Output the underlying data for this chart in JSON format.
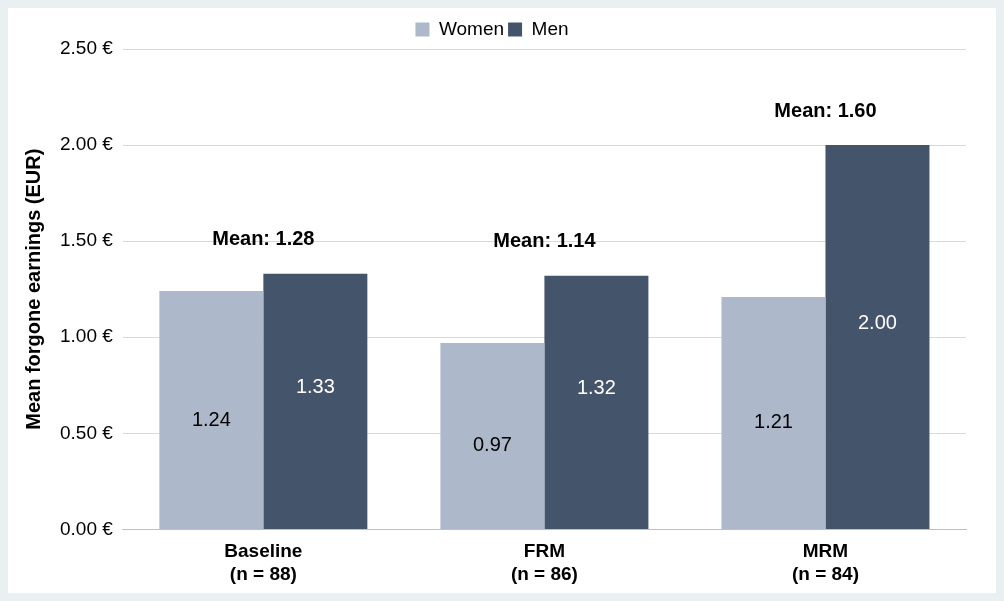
{
  "chart_data": {
    "type": "bar",
    "ylabel": "Mean forgone earnings (EUR)",
    "categories": [
      "Baseline\n(n = 88)",
      "FRM\n(n = 86)",
      "MRM\n(n = 84)"
    ],
    "series": [
      {
        "name": "Women",
        "color": "#adb9ca",
        "values": [
          1.24,
          0.97,
          1.21
        ],
        "value_labels": [
          "1.24",
          "0.97",
          "1.21"
        ]
      },
      {
        "name": "Men",
        "color": "#44546a",
        "values": [
          1.33,
          1.32,
          2.0
        ],
        "value_labels": [
          "1.33",
          "1.32",
          "2.00"
        ]
      }
    ],
    "ylim": [
      0,
      2.5
    ],
    "yticks": [
      {
        "value": 0,
        "label": "0.00 €"
      },
      {
        "value": 0.5,
        "label": "0.50 €"
      },
      {
        "value": 1,
        "label": "1.00 €"
      },
      {
        "value": 1.5,
        "label": "1.50 €"
      },
      {
        "value": 2,
        "label": "2.00 €"
      },
      {
        "value": 2.5,
        "label": "2.50 €"
      }
    ],
    "annotations": [
      "Mean: 1.28",
      "Mean: 1.14",
      "Mean: 1.60"
    ],
    "grid": "y",
    "legend": "top"
  }
}
